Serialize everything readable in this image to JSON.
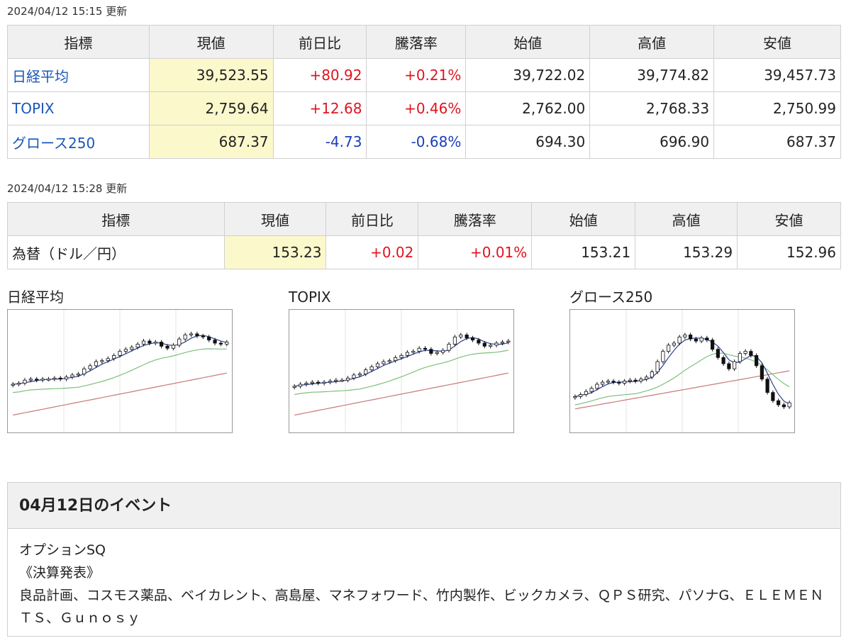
{
  "indices": {
    "updated": "2024/04/12 15:15 更新",
    "headers": [
      "指標",
      "現値",
      "前日比",
      "騰落率",
      "始値",
      "高値",
      "安値"
    ],
    "rows": [
      {
        "name": "日経平均",
        "current": "39,523.55",
        "change": "+80.92",
        "rate": "+0.21%",
        "open": "39,722.02",
        "high": "39,774.82",
        "low": "39,457.73",
        "direction": "up"
      },
      {
        "name": "TOPIX",
        "current": "2,759.64",
        "change": "+12.68",
        "rate": "+0.46%",
        "open": "2,762.00",
        "high": "2,768.33",
        "low": "2,750.99",
        "direction": "up"
      },
      {
        "name": "グロース250",
        "current": "687.37",
        "change": "-4.73",
        "rate": "-0.68%",
        "open": "694.30",
        "high": "696.90",
        "low": "687.37",
        "direction": "down"
      }
    ]
  },
  "fx": {
    "updated": "2024/04/12 15:28 更新",
    "headers": [
      "指標",
      "現値",
      "前日比",
      "騰落率",
      "始値",
      "高値",
      "安値"
    ],
    "rows": [
      {
        "name": "為替（ドル／円）",
        "current": "153.23",
        "change": "+0.02",
        "rate": "+0.01%",
        "open": "153.21",
        "high": "153.29",
        "low": "152.96",
        "direction": "up"
      }
    ]
  },
  "charts": [
    {
      "title": "日経平均"
    },
    {
      "title": "TOPIX"
    },
    {
      "title": "グロース250"
    }
  ],
  "colors": {
    "up": "#e0141e",
    "down": "#1a3fb8",
    "link": "#1a57b8",
    "current_bg": "#fbf8cc",
    "ma_short": "#2b3f8f",
    "ma_mid": "#7cc07c",
    "ma_long": "#c77b7b"
  },
  "events": {
    "title": "04月12日のイベント",
    "lines": [
      "オプションSQ",
      "《決算発表》",
      "良品計画、コスモス薬品、ベイカレント、高島屋、マネフォワード、竹内製作、ビックカメラ、ＱＰＳ研究、パソナG、ＥＬＥＭＥＮＴＳ、Ｇｕｎｏｓｙ"
    ]
  }
}
